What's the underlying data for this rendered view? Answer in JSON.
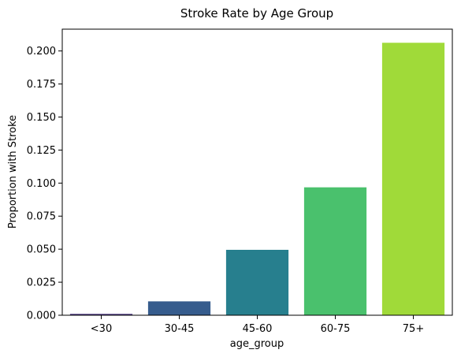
{
  "chart_data": {
    "type": "bar",
    "title": "Stroke Rate by Age Group",
    "xlabel": "age_group",
    "ylabel": "Proportion with Stroke",
    "categories": [
      "<30",
      "30-45",
      "45-60",
      "60-75",
      "75+"
    ],
    "values": [
      0.001,
      0.0105,
      0.0495,
      0.0968,
      0.2062
    ],
    "colors": [
      "#46327e",
      "#365c8d",
      "#277f8e",
      "#4ac16d",
      "#a0da39"
    ],
    "ylim": [
      0,
      0.2165
    ],
    "yticks": [
      "0.000",
      "0.025",
      "0.050",
      "0.075",
      "0.100",
      "0.125",
      "0.150",
      "0.175",
      "0.200"
    ],
    "ytick_values": [
      0,
      0.025,
      0.05,
      0.075,
      0.1,
      0.125,
      0.15,
      0.175,
      0.2
    ],
    "grid": false,
    "legend": "none"
  }
}
